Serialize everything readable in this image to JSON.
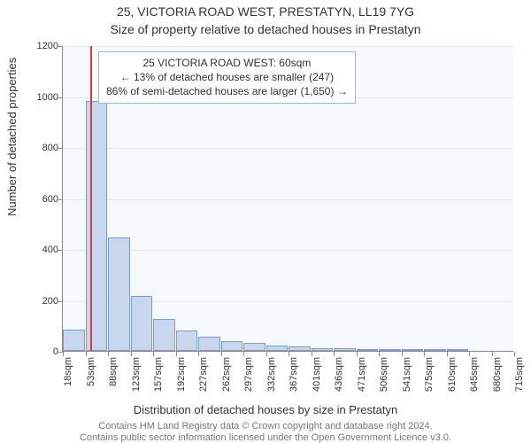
{
  "header": {
    "address": "25, VICTORIA ROAD WEST, PRESTATYN, LL19 7YG",
    "subtitle": "Size of property relative to detached houses in Prestatyn"
  },
  "ylabel": "Number of detached properties",
  "xlabel": "Distribution of detached houses by size in Prestatyn",
  "footer": {
    "line1": "Contains HM Land Registry data © Crown copyright and database right 2024.",
    "line2": "Contains public sector information licensed under the Open Government Licence v3.0."
  },
  "annotation": {
    "line1": "25 VICTORIA ROAD WEST: 60sqm",
    "line2": "← 13% of detached houses are smaller (247)",
    "line3": "86% of semi-detached houses are larger (1,650) →"
  },
  "chart": {
    "type": "histogram",
    "background_color": "#f6f9fd",
    "grid_color": "#e3e9f0",
    "axis_color": "#888888",
    "bar_fill": "#c8d7ee",
    "bar_stroke": "#7a9cce",
    "marker_color": "#d73c3c",
    "marker_x": 60,
    "ylim": [
      0,
      1200
    ],
    "ytick_step": 200,
    "ytick_labels": [
      "0",
      "200",
      "400",
      "600",
      "800",
      "1000",
      "1200"
    ],
    "x_start": 18,
    "x_step": 35,
    "xtick_labels": [
      "18sqm",
      "53sqm",
      "88sqm",
      "123sqm",
      "157sqm",
      "192sqm",
      "227sqm",
      "262sqm",
      "297sqm",
      "332sqm",
      "367sqm",
      "401sqm",
      "436sqm",
      "471sqm",
      "506sqm",
      "541sqm",
      "575sqm",
      "610sqm",
      "645sqm",
      "680sqm",
      "715sqm"
    ],
    "values": [
      85,
      980,
      445,
      215,
      125,
      80,
      55,
      40,
      30,
      22,
      16,
      12,
      9,
      5,
      3,
      2,
      1,
      1,
      0,
      0
    ],
    "label_fontsize": 11,
    "axis_label_fontsize": 13,
    "title_fontsize": 14
  }
}
